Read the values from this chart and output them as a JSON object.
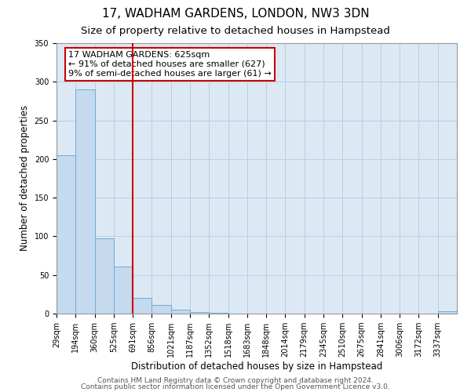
{
  "title": "17, WADHAM GARDENS, LONDON, NW3 3DN",
  "subtitle": "Size of property relative to detached houses in Hampstead",
  "xlabel": "Distribution of detached houses by size in Hampstead",
  "ylabel": "Number of detached properties",
  "bin_labels": [
    "29sqm",
    "194sqm",
    "360sqm",
    "525sqm",
    "691sqm",
    "856sqm",
    "1021sqm",
    "1187sqm",
    "1352sqm",
    "1518sqm",
    "1683sqm",
    "1848sqm",
    "2014sqm",
    "2179sqm",
    "2345sqm",
    "2510sqm",
    "2675sqm",
    "2841sqm",
    "3006sqm",
    "3172sqm",
    "3337sqm"
  ],
  "bar_heights": [
    205,
    290,
    97,
    61,
    20,
    11,
    5,
    2,
    1,
    0,
    0,
    0,
    0,
    0,
    0,
    0,
    0,
    0,
    0,
    0,
    3
  ],
  "bar_color": "#c5d9ef",
  "bar_edge_color": "#6baed6",
  "vline_x_index": 4,
  "vline_color": "#cc0000",
  "annotation_line1": "17 WADHAM GARDENS: 625sqm",
  "annotation_line2": "← 91% of detached houses are smaller (627)",
  "annotation_line3": "9% of semi-detached houses are larger (61) →",
  "annotation_box_color": "#ffffff",
  "annotation_box_edge_color": "#cc0000",
  "ylim": [
    0,
    350
  ],
  "yticks": [
    0,
    50,
    100,
    150,
    200,
    250,
    300,
    350
  ],
  "footer_line1": "Contains HM Land Registry data © Crown copyright and database right 2024.",
  "footer_line2": "Contains public sector information licensed under the Open Government Licence v3.0.",
  "background_color": "#ffffff",
  "plot_bg_color": "#dce9f5",
  "grid_color": "#b8cfe0",
  "title_fontsize": 11,
  "subtitle_fontsize": 9.5,
  "label_fontsize": 8.5,
  "tick_fontsize": 7,
  "annotation_fontsize": 8,
  "footer_fontsize": 6.5
}
